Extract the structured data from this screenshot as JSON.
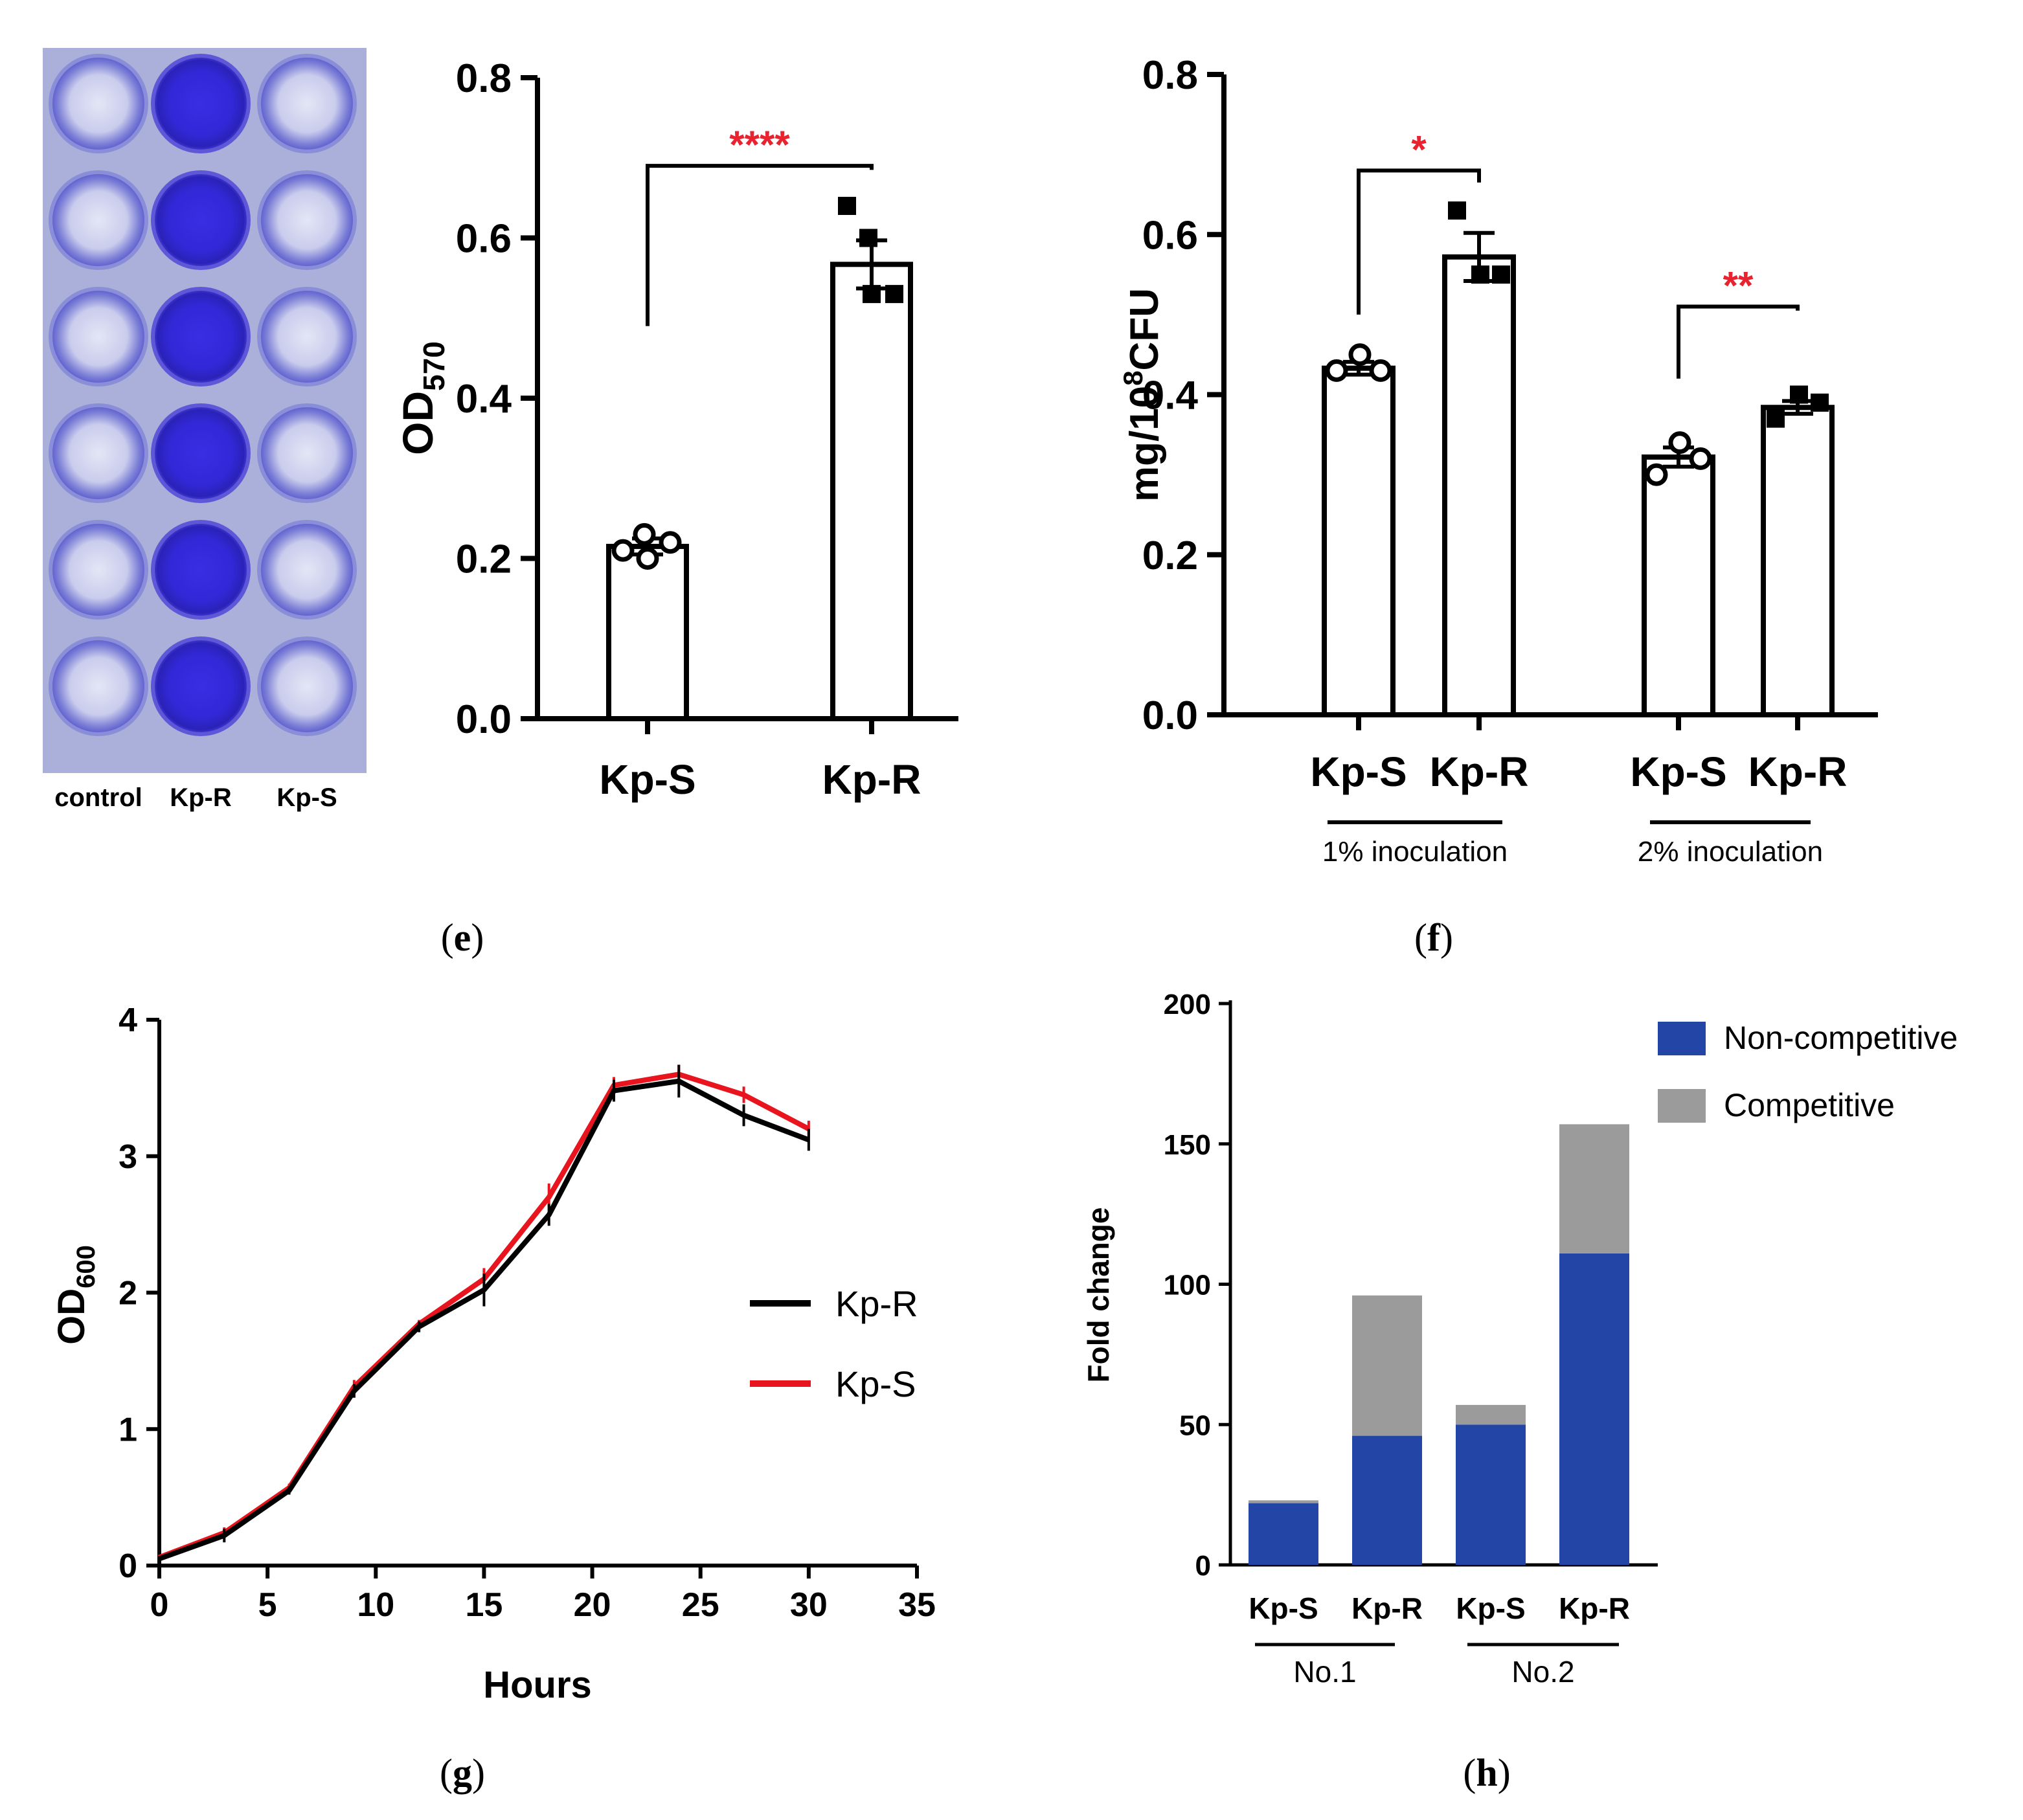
{
  "captions": {
    "e": "e",
    "f": "f",
    "g": "g",
    "h": "h"
  },
  "colors": {
    "axis": "#000000",
    "sig": "#e8222f",
    "kp_r_line": "#000000",
    "kp_s_line": "#e8141e",
    "noncompetitive": "#2346a6",
    "competitive": "#9b9b9b",
    "well_clear": "#c8c8ec",
    "well_stained": "#3b2fe0",
    "plate_bg": "#aab0da"
  },
  "chart_data": [
    {
      "id": "plate",
      "type": "image",
      "column_labels": [
        "control",
        "Kp-R",
        "Kp-S"
      ],
      "rows": 6
    },
    {
      "id": "e",
      "type": "bar",
      "ylabel": "OD",
      "ylabel_sub": "570",
      "ylim": [
        0,
        0.8
      ],
      "yticks": [
        0.0,
        0.2,
        0.4,
        0.6,
        0.8
      ],
      "ytick_labels": [
        "0.0",
        "0.2",
        "0.4",
        "0.6",
        "0.8"
      ],
      "categories": [
        "Kp-S",
        "Kp-R"
      ],
      "values": [
        0.215,
        0.567
      ],
      "errors": [
        0.01,
        0.03
      ],
      "points": [
        [
          0.21,
          0.23,
          0.22,
          0.2
        ],
        [
          0.64,
          0.6,
          0.53,
          0.53
        ]
      ],
      "markers": [
        "circle",
        "square"
      ],
      "significance": [
        {
          "from": 0,
          "to": 1,
          "label": "****",
          "y": 0.69
        }
      ]
    },
    {
      "id": "f",
      "type": "bar",
      "ylabel": "mg/10",
      "ylabel_sup": "8",
      "ylabel_tail": "CFU",
      "ylim": [
        0,
        0.8
      ],
      "yticks": [
        0.0,
        0.2,
        0.4,
        0.6,
        0.8
      ],
      "ytick_labels": [
        "0.0",
        "0.2",
        "0.4",
        "0.6",
        "0.8"
      ],
      "categories": [
        "Kp-S",
        "Kp-R",
        "Kp-S",
        "Kp-R"
      ],
      "values": [
        0.433,
        0.572,
        0.322,
        0.384
      ],
      "errors": [
        0.008,
        0.03,
        0.012,
        0.008
      ],
      "points": [
        [
          0.43,
          0.45,
          0.43
        ],
        [
          0.63,
          0.55,
          0.55
        ],
        [
          0.3,
          0.34,
          0.32
        ],
        [
          0.37,
          0.4,
          0.39
        ]
      ],
      "markers": [
        "circle",
        "square",
        "circle",
        "square"
      ],
      "groups": [
        {
          "label": "1% inoculation",
          "bars": [
            0,
            1
          ]
        },
        {
          "label": "2% inoculation",
          "bars": [
            2,
            3
          ]
        }
      ],
      "significance": [
        {
          "from": 0,
          "to": 1,
          "label": "*",
          "y": 0.68
        },
        {
          "from": 2,
          "to": 3,
          "label": "**",
          "y": 0.51
        }
      ]
    },
    {
      "id": "g",
      "type": "line",
      "xlabel": "Hours",
      "ylabel": "OD",
      "ylabel_sub": "600",
      "xlim": [
        0,
        35
      ],
      "ylim": [
        0,
        4
      ],
      "xticks": [
        0,
        5,
        10,
        15,
        20,
        25,
        30,
        35
      ],
      "yticks": [
        0,
        1,
        2,
        3,
        4
      ],
      "legend_position": "right",
      "series": [
        {
          "name": "Kp-R",
          "x": [
            0,
            3,
            6,
            9,
            12,
            15,
            18,
            21,
            24,
            27,
            30
          ],
          "y": [
            0.05,
            0.22,
            0.55,
            1.28,
            1.75,
            2.02,
            2.57,
            3.48,
            3.55,
            3.3,
            3.12
          ],
          "err": [
            0.02,
            0.05,
            0.03,
            0.05,
            0.04,
            0.12,
            0.08,
            0.08,
            0.12,
            0.08,
            0.08
          ]
        },
        {
          "name": "Kp-S",
          "x": [
            0,
            3,
            6,
            9,
            12,
            15,
            18,
            21,
            24,
            27,
            30
          ],
          "y": [
            0.06,
            0.24,
            0.57,
            1.31,
            1.77,
            2.1,
            2.7,
            3.52,
            3.6,
            3.45,
            3.2
          ],
          "err": [
            0.02,
            0.04,
            0.03,
            0.05,
            0.03,
            0.08,
            0.1,
            0.06,
            0.07,
            0.06,
            0.06
          ]
        }
      ]
    },
    {
      "id": "h",
      "type": "bar",
      "stacked": true,
      "ylabel": "Fold change",
      "ylim": [
        0,
        200
      ],
      "yticks": [
        0,
        50,
        100,
        150,
        200
      ],
      "categories": [
        "Kp-S",
        "Kp-R",
        "Kp-S",
        "Kp-R"
      ],
      "groups": [
        {
          "label": "No.1",
          "bars": [
            0,
            1
          ]
        },
        {
          "label": "No.2",
          "bars": [
            2,
            3
          ]
        }
      ],
      "legend_position": "top-right",
      "series": [
        {
          "name": "Non-competitive",
          "values": [
            22,
            46,
            50,
            111
          ]
        },
        {
          "name": "Competitive",
          "values": [
            1,
            50,
            7,
            46
          ]
        }
      ]
    }
  ]
}
